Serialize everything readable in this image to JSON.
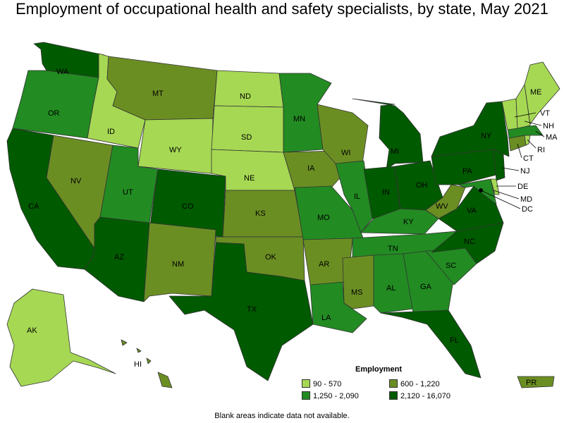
{
  "title": "Employment of occupational health and safety specialists, by state, May 2021",
  "legend": {
    "title": "Employment",
    "classes": [
      {
        "label": "90 - 570",
        "color": "#a6d854"
      },
      {
        "label": "600 - 1,220",
        "color": "#6b8e23"
      },
      {
        "label": "1,250 - 2,090",
        "color": "#228b22"
      },
      {
        "label": "2,120 - 16,070",
        "color": "#005a00"
      }
    ]
  },
  "footnote": "Blank areas indicate data not available.",
  "states": {
    "WA": {
      "label": "WA",
      "class": 3
    },
    "OR": {
      "label": "OR",
      "class": 2
    },
    "CA": {
      "label": "CA",
      "class": 3
    },
    "ID": {
      "label": "ID",
      "class": 0
    },
    "NV": {
      "label": "NV",
      "class": 1
    },
    "MT": {
      "label": "MT",
      "class": 1
    },
    "WY": {
      "label": "WY",
      "class": 0
    },
    "UT": {
      "label": "UT",
      "class": 2
    },
    "AZ": {
      "label": "AZ",
      "class": 3
    },
    "CO": {
      "label": "CO",
      "class": 3
    },
    "NM": {
      "label": "NM",
      "class": 1
    },
    "ND": {
      "label": "ND",
      "class": 0
    },
    "SD": {
      "label": "SD",
      "class": 0
    },
    "NE": {
      "label": "NE",
      "class": 0
    },
    "KS": {
      "label": "KS",
      "class": 1
    },
    "OK": {
      "label": "OK",
      "class": 1
    },
    "TX": {
      "label": "TX",
      "class": 3
    },
    "MN": {
      "label": "MN",
      "class": 2
    },
    "IA": {
      "label": "IA",
      "class": 1
    },
    "MO": {
      "label": "MO",
      "class": 2
    },
    "AR": {
      "label": "AR",
      "class": 1
    },
    "LA": {
      "label": "LA",
      "class": 2
    },
    "WI": {
      "label": "WI",
      "class": 1
    },
    "IL": {
      "label": "IL",
      "class": 2
    },
    "MI": {
      "label": "MI",
      "class": 3
    },
    "IN": {
      "label": "IN",
      "class": 3
    },
    "OH": {
      "label": "OH",
      "class": 3
    },
    "KY": {
      "label": "KY",
      "class": 2
    },
    "TN": {
      "label": "TN",
      "class": 2
    },
    "MS": {
      "label": "MS",
      "class": 1
    },
    "AL": {
      "label": "AL",
      "class": 2
    },
    "GA": {
      "label": "GA",
      "class": 2
    },
    "FL": {
      "label": "FL",
      "class": 3
    },
    "SC": {
      "label": "SC",
      "class": 2
    },
    "NC": {
      "label": "NC",
      "class": 3
    },
    "VA": {
      "label": "VA",
      "class": 3
    },
    "WV": {
      "label": "WV",
      "class": 1
    },
    "PA": {
      "label": "PA",
      "class": 3
    },
    "NY": {
      "label": "NY",
      "class": 3
    },
    "NJ": {
      "label": "NJ",
      "class": 3
    },
    "DE": {
      "label": "DE",
      "class": 0
    },
    "MD": {
      "label": "MD",
      "class": 2
    },
    "DC": {
      "label": "DC",
      "class": 0
    },
    "CT": {
      "label": "CT",
      "class": 1
    },
    "RI": {
      "label": "RI",
      "class": 0
    },
    "MA": {
      "label": "MA",
      "class": 2
    },
    "VT": {
      "label": "VT",
      "class": 0
    },
    "NH": {
      "label": "NH",
      "class": 0
    },
    "ME": {
      "label": "ME",
      "class": 0
    },
    "AK": {
      "label": "AK",
      "class": 0
    },
    "HI": {
      "label": "HI",
      "class": 1
    },
    "PR": {
      "label": "PR",
      "class": 1
    }
  }
}
